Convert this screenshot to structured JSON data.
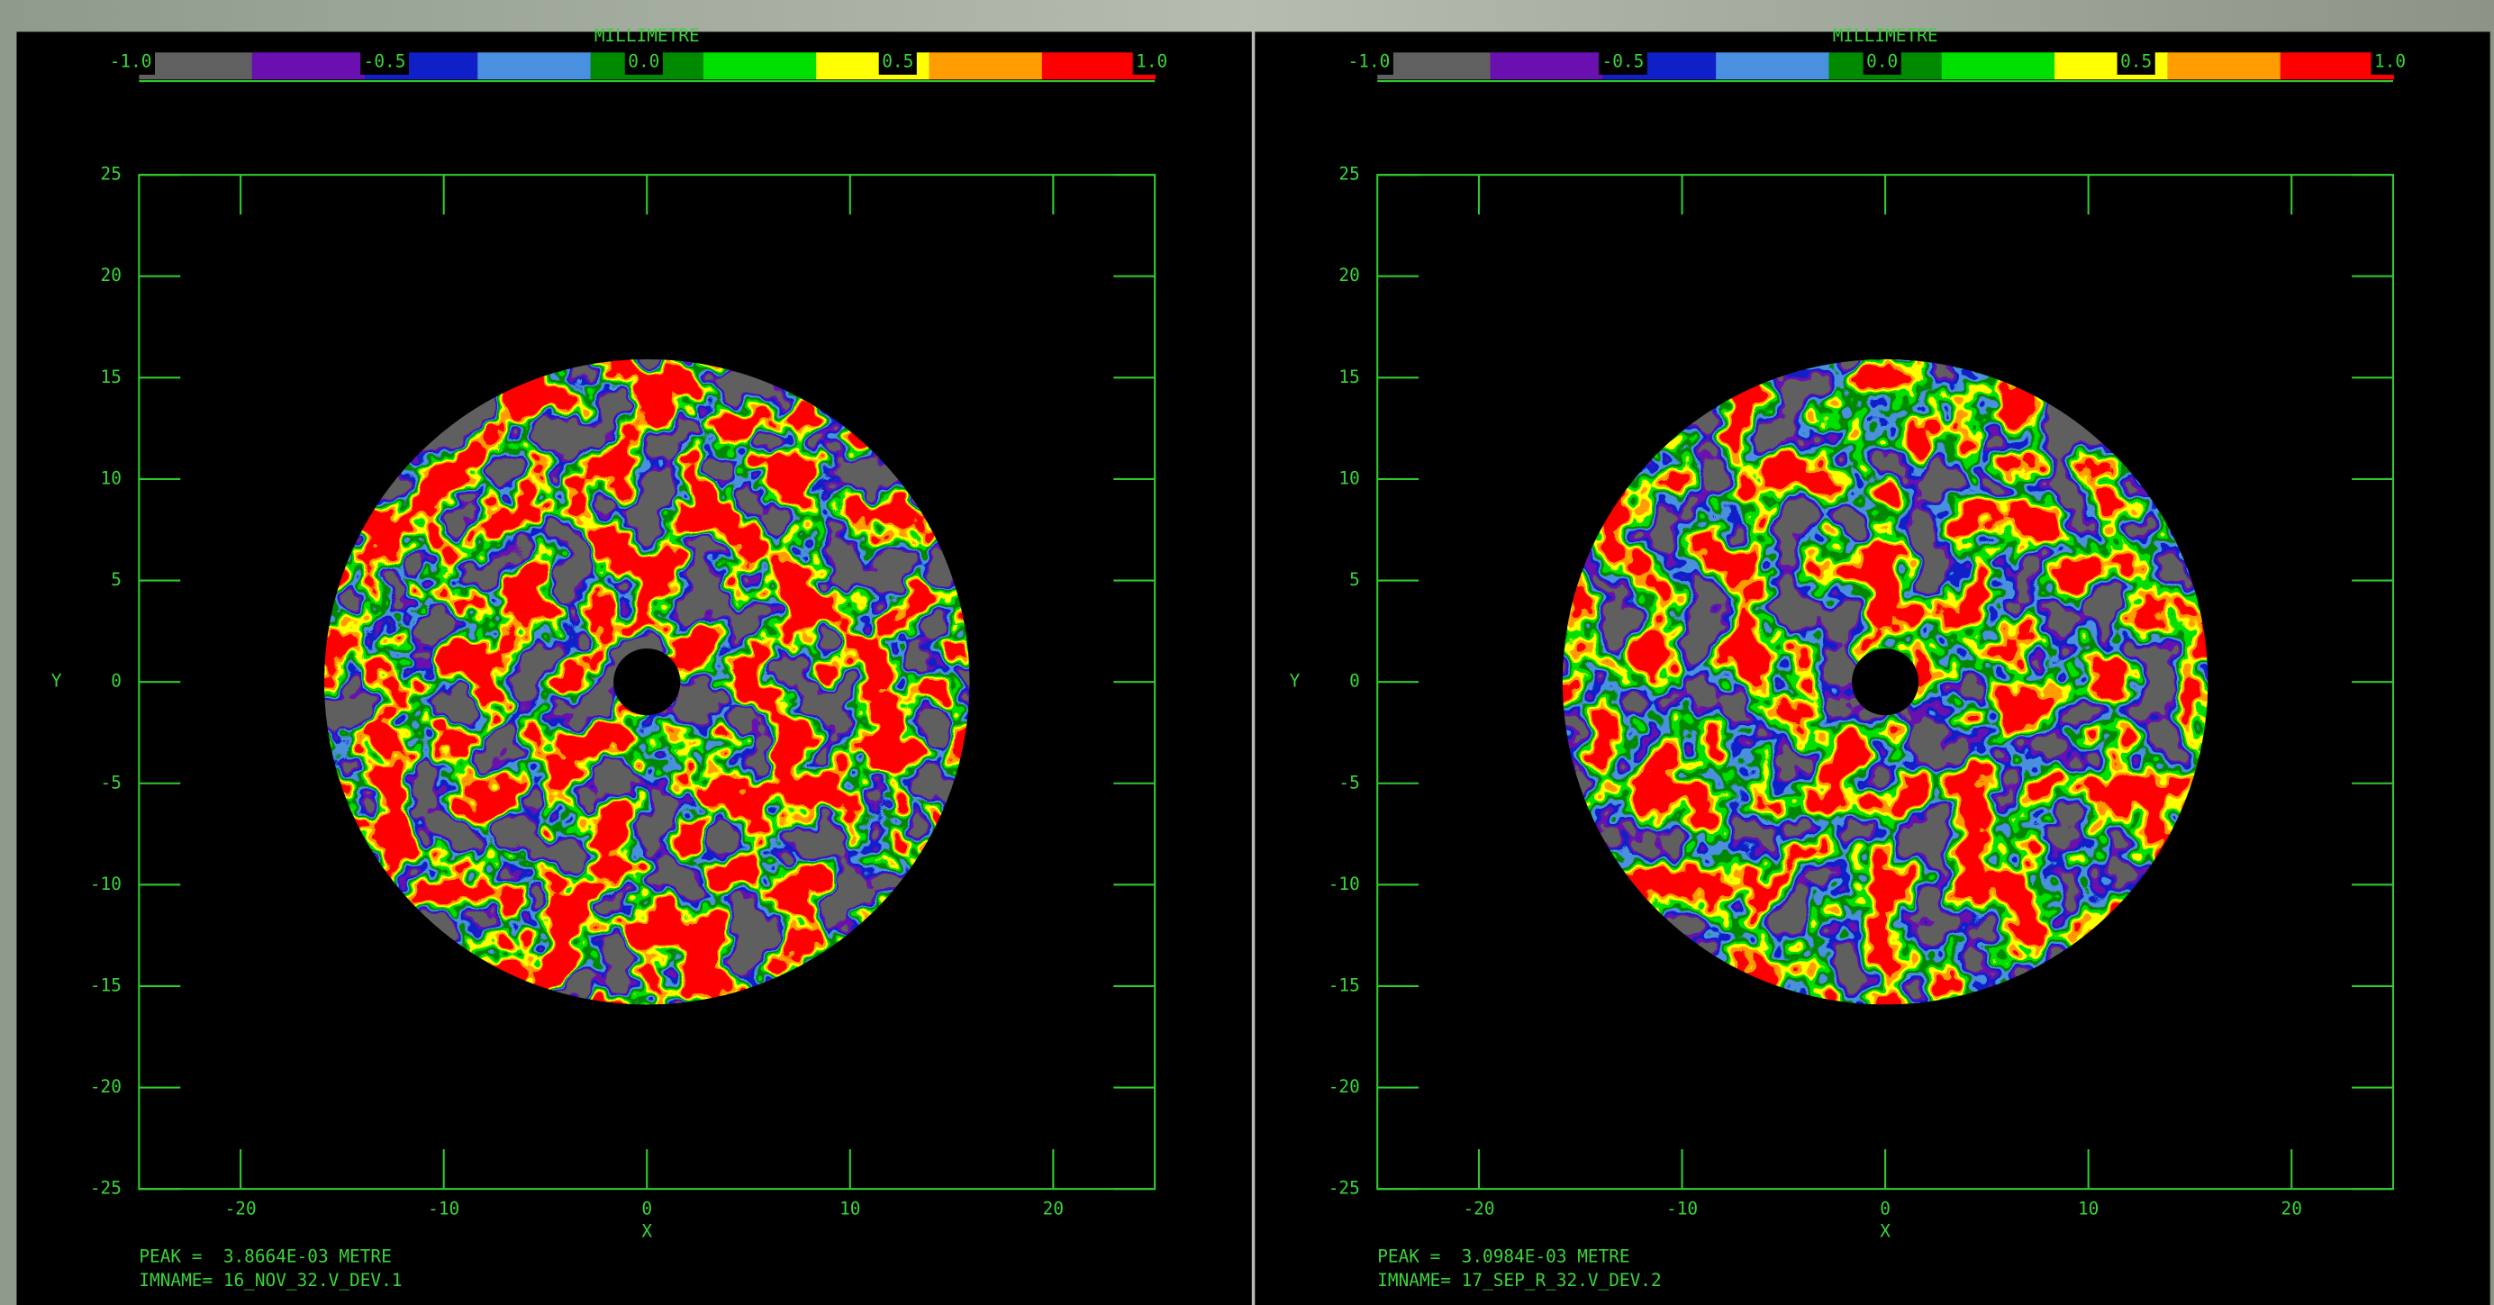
{
  "chart_data": [
    {
      "type": "heatmap",
      "colorbar_label": "MILLIMETRE",
      "clim": [
        -1,
        1
      ],
      "cticks": [
        {
          "value": -1,
          "label": "-1.0"
        },
        {
          "value": -0.5,
          "label": "-0.5"
        },
        {
          "value": 0,
          "label": "0.0"
        },
        {
          "value": 0.5,
          "label": "0.5"
        },
        {
          "value": 1,
          "label": "1.0"
        }
      ],
      "colors": [
        "#606060",
        "#6a10b0",
        "#1020c8",
        "#4a90e0",
        "#008a00",
        "#00e000",
        "#ffff00",
        "#ff9c00",
        "#ff0000"
      ],
      "xlabel": "X",
      "ylabel": "Y",
      "xlim": [
        -25,
        25
      ],
      "ylim": [
        -25,
        25
      ],
      "xticks": [
        -20,
        -10,
        0,
        10,
        20
      ],
      "yticks": [
        25,
        20,
        15,
        10,
        5,
        0,
        -5,
        -10,
        -15,
        -20,
        -25
      ],
      "notes": [
        "PEAK =  3.8664E-03 METRE",
        "IMNAME= 16_NOV_32.V_DEV.1"
      ]
    },
    {
      "type": "heatmap",
      "colorbar_label": "MILLIMETRE",
      "clim": [
        -1,
        1
      ],
      "cticks": [
        {
          "value": -1,
          "label": "-1.0"
        },
        {
          "value": -0.5,
          "label": "-0.5"
        },
        {
          "value": 0,
          "label": "0.0"
        },
        {
          "value": 0.5,
          "label": "0.5"
        },
        {
          "value": 1,
          "label": "1.0"
        }
      ],
      "colors": [
        "#606060",
        "#6a10b0",
        "#1020c8",
        "#4a90e0",
        "#008a00",
        "#00e000",
        "#ffff00",
        "#ff9c00",
        "#ff0000"
      ],
      "xlabel": "X",
      "ylabel": "Y",
      "xlim": [
        -25,
        25
      ],
      "ylim": [
        -25,
        25
      ],
      "xticks": [
        -20,
        -10,
        0,
        10,
        20
      ],
      "yticks": [
        25,
        20,
        15,
        10,
        5,
        0,
        -5,
        -10,
        -15,
        -20,
        -25
      ],
      "notes": [
        "PEAK =  3.0984E-03 METRE",
        "IMNAME= 17_SEP_R_32.V_DEV.2"
      ]
    }
  ]
}
